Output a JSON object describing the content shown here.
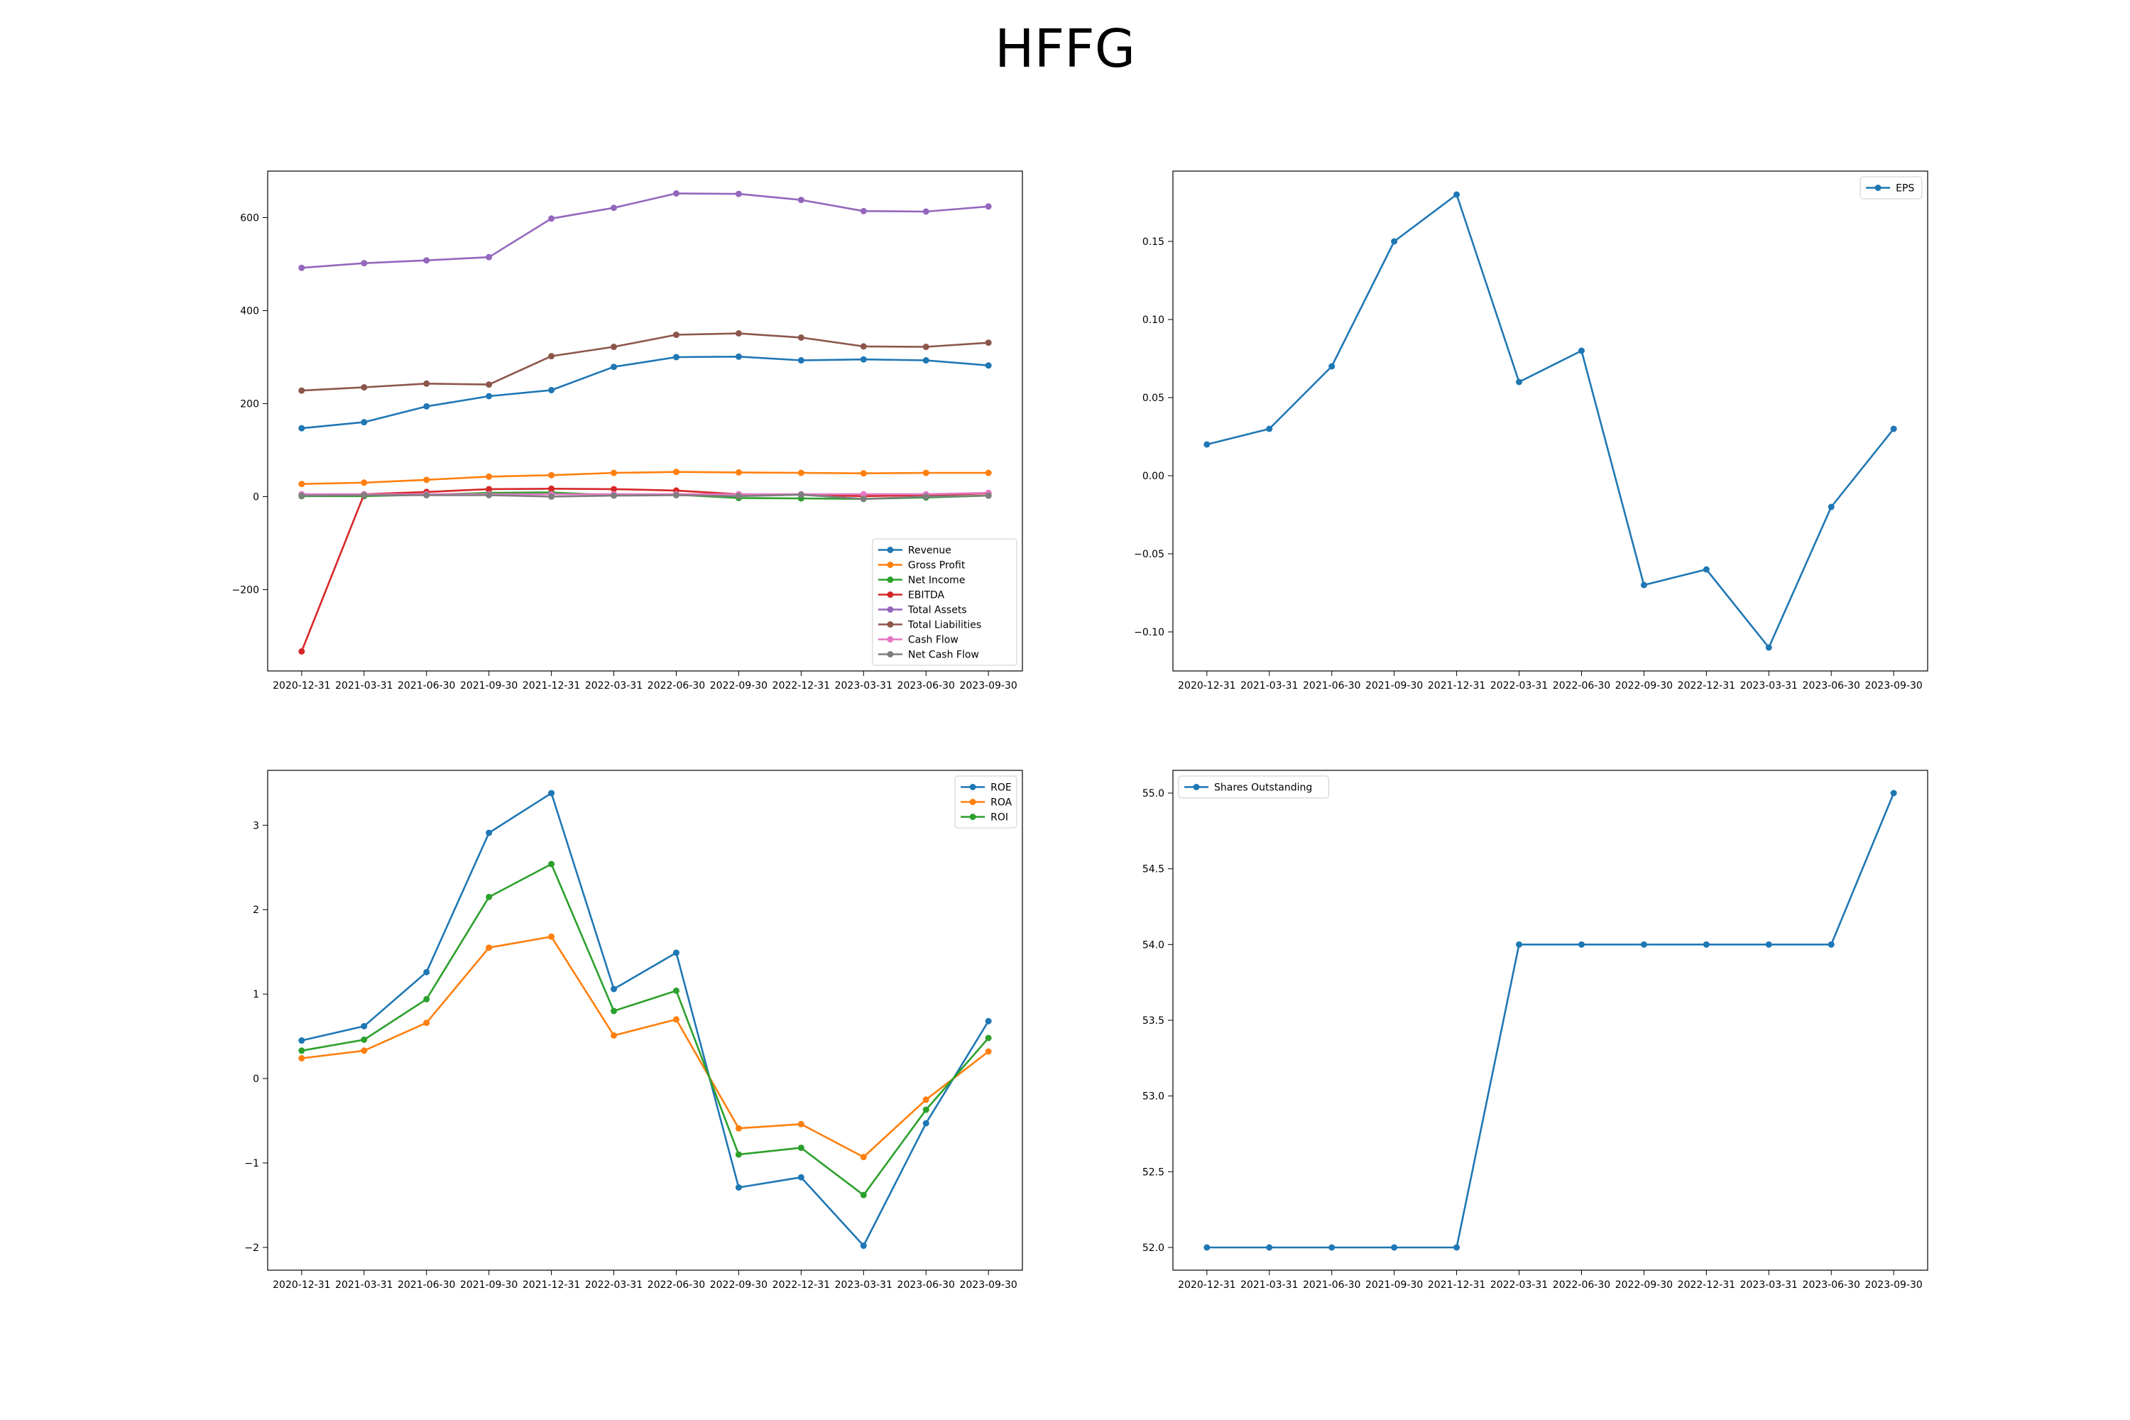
{
  "page_title": "HFFG",
  "dates": [
    "2020-12-31",
    "2021-03-31",
    "2021-06-30",
    "2021-09-30",
    "2021-12-31",
    "2022-03-31",
    "2022-06-30",
    "2022-09-30",
    "2022-12-31",
    "2023-03-31",
    "2023-06-30",
    "2023-09-30"
  ],
  "chart_data": [
    {
      "type": "line",
      "categories": [
        "2020-12-31",
        "2021-03-31",
        "2021-06-30",
        "2021-09-30",
        "2021-12-31",
        "2022-03-31",
        "2022-06-30",
        "2022-09-30",
        "2022-12-31",
        "2023-03-31",
        "2023-06-30",
        "2023-09-30"
      ],
      "ylim": [
        -375,
        700
      ],
      "yticks": [
        -200,
        0,
        200,
        400,
        600
      ],
      "ytick_labels": [
        "−200",
        "0",
        "200",
        "400",
        "600"
      ],
      "legend_position": "lower-right",
      "series": [
        {
          "name": "Revenue",
          "color": "#1f77b4",
          "values": [
            147,
            160,
            194,
            216,
            229,
            279,
            300,
            301,
            293,
            295,
            293,
            282
          ]
        },
        {
          "name": "Gross Profit",
          "color": "#ff7f0e",
          "values": [
            27,
            30,
            36,
            43,
            46,
            51,
            53,
            52,
            51,
            50,
            51,
            51
          ]
        },
        {
          "name": "Net Income",
          "color": "#2ca02c",
          "values": [
            1,
            1,
            4,
            8,
            9,
            3,
            4,
            -3,
            -4,
            -5,
            -2,
            2
          ]
        },
        {
          "name": "EBITDA",
          "color": "#d62728",
          "values": [
            -333,
            5,
            10,
            16,
            17,
            16,
            13,
            5,
            4,
            1,
            3,
            7
          ]
        },
        {
          "name": "Total Assets",
          "color": "#9467bd",
          "values": [
            492,
            502,
            508,
            515,
            598,
            621,
            652,
            651,
            638,
            614,
            613,
            624
          ]
        },
        {
          "name": "Total Liabilities",
          "color": "#8c564b",
          "values": [
            228,
            235,
            243,
            241,
            302,
            322,
            348,
            351,
            342,
            323,
            322,
            331
          ]
        },
        {
          "name": "Cash Flow",
          "color": "#e377c2",
          "values": [
            5,
            5,
            5,
            5,
            5,
            5,
            5,
            5,
            5,
            5,
            5,
            8
          ]
        },
        {
          "name": "Net Cash Flow",
          "color": "#7f7f7f",
          "values": [
            2,
            3,
            3,
            3,
            0,
            2,
            3,
            1,
            4,
            -5,
            0,
            2
          ]
        }
      ]
    },
    {
      "type": "line",
      "categories": [
        "2020-12-31",
        "2021-03-31",
        "2021-06-30",
        "2021-09-30",
        "2021-12-31",
        "2022-03-31",
        "2022-06-30",
        "2022-09-30",
        "2022-12-31",
        "2023-03-31",
        "2023-06-30",
        "2023-09-30"
      ],
      "ylim": [
        -0.125,
        0.195
      ],
      "yticks": [
        -0.1,
        -0.05,
        0.0,
        0.05,
        0.1,
        0.15
      ],
      "ytick_labels": [
        "−0.10",
        "−0.05",
        "0.00",
        "0.05",
        "0.10",
        "0.15"
      ],
      "legend_position": "upper-right",
      "series": [
        {
          "name": "EPS",
          "color": "#1f77b4",
          "values": [
            0.02,
            0.03,
            0.07,
            0.15,
            0.18,
            0.06,
            0.08,
            -0.07,
            -0.06,
            -0.11,
            -0.02,
            0.03
          ]
        }
      ]
    },
    {
      "type": "line",
      "categories": [
        "2020-12-31",
        "2021-03-31",
        "2021-06-30",
        "2021-09-30",
        "2021-12-31",
        "2022-03-31",
        "2022-06-30",
        "2022-09-30",
        "2022-12-31",
        "2023-03-31",
        "2023-06-30",
        "2023-09-30"
      ],
      "ylim": [
        -2.27,
        3.65
      ],
      "yticks": [
        -2,
        -1,
        0,
        1,
        2,
        3
      ],
      "ytick_labels": [
        "−2",
        "−1",
        "0",
        "1",
        "2",
        "3"
      ],
      "legend_position": "upper-right",
      "series": [
        {
          "name": "ROE",
          "color": "#1f77b4",
          "values": [
            0.45,
            0.62,
            1.26,
            2.91,
            3.38,
            1.06,
            1.49,
            -1.29,
            -1.17,
            -1.98,
            -0.53,
            0.68
          ]
        },
        {
          "name": "ROA",
          "color": "#ff7f0e",
          "values": [
            0.24,
            0.33,
            0.66,
            1.55,
            1.68,
            0.51,
            0.7,
            -0.59,
            -0.54,
            -0.93,
            -0.25,
            0.32
          ]
        },
        {
          "name": "ROI",
          "color": "#2ca02c",
          "values": [
            0.33,
            0.46,
            0.94,
            2.15,
            2.54,
            0.8,
            1.04,
            -0.9,
            -0.82,
            -1.38,
            -0.37,
            0.48
          ]
        }
      ]
    },
    {
      "type": "line",
      "categories": [
        "2020-12-31",
        "2021-03-31",
        "2021-06-30",
        "2021-09-30",
        "2021-12-31",
        "2022-03-31",
        "2022-06-30",
        "2022-09-30",
        "2022-12-31",
        "2023-03-31",
        "2023-06-30",
        "2023-09-30"
      ],
      "ylim": [
        51.85,
        55.15
      ],
      "yticks": [
        52.0,
        52.5,
        53.0,
        53.5,
        54.0,
        54.5,
        55.0
      ],
      "ytick_labels": [
        "52.0",
        "52.5",
        "53.0",
        "53.5",
        "54.0",
        "54.5",
        "55.0"
      ],
      "legend_position": "upper-left",
      "series": [
        {
          "name": "Shares Outstanding",
          "color": "#1f77b4",
          "values": [
            52,
            52,
            52,
            52,
            52,
            54,
            54,
            54,
            54,
            54,
            54,
            55
          ]
        }
      ]
    }
  ]
}
